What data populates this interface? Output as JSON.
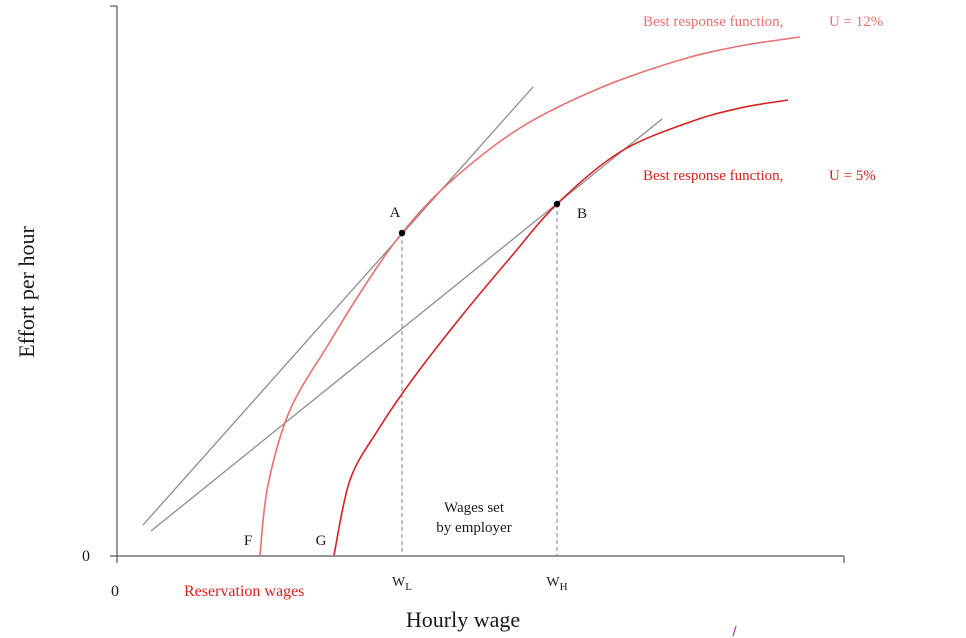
{
  "chart_data": {
    "type": "line",
    "title": "",
    "xlabel": "Hourly wage",
    "ylabel": "Effort per hour",
    "x_origin_label": "0",
    "y_origin_label": "0",
    "grid": false,
    "colors": {
      "axis": "#555555",
      "isocost": "#8c8c8c",
      "br_high_u": "#e87070",
      "br_low_u": "#d81f1f",
      "dashed": "#888888",
      "text": "#1a1a1a"
    },
    "series": [
      {
        "name": "Best response function, U = 12%",
        "label_text": "Best response function,",
        "label_u": "U = 12%",
        "color": "#e87070",
        "points": [
          [
            260,
            555
          ],
          [
            268,
            485
          ],
          [
            290,
            410
          ],
          [
            328,
            345
          ],
          [
            362,
            290
          ],
          [
            402,
            233
          ],
          [
            450,
            182
          ],
          [
            520,
            128
          ],
          [
            600,
            88
          ],
          [
            680,
            60
          ],
          [
            740,
            46
          ],
          [
            800,
            37
          ]
        ]
      },
      {
        "name": "Best response function, U = 5%",
        "label_text": "Best response function,",
        "label_u": "U = 5%",
        "color": "#d81f1f",
        "points": [
          [
            334,
            555
          ],
          [
            350,
            480
          ],
          [
            378,
            430
          ],
          [
            412,
            380
          ],
          [
            460,
            318
          ],
          [
            510,
            258
          ],
          [
            557,
            204
          ],
          [
            620,
            152
          ],
          [
            690,
            122
          ],
          [
            740,
            108
          ],
          [
            788,
            100
          ]
        ]
      }
    ],
    "isocost_lines": [
      {
        "from": [
          143,
          525
        ],
        "to": [
          533,
          87
        ]
      },
      {
        "from": [
          151,
          531
        ],
        "to": [
          662,
          119
        ]
      }
    ],
    "points": [
      {
        "label": "A",
        "x": 402,
        "y": 233
      },
      {
        "label": "B",
        "x": 557,
        "y": 204
      }
    ],
    "wage_labels": [
      {
        "main": "W",
        "sub": "L",
        "x": 402
      },
      {
        "main": "W",
        "sub": "H",
        "x": 557
      }
    ],
    "reservation_points": [
      {
        "label": "F",
        "x": 260
      },
      {
        "label": "G",
        "x": 334
      }
    ],
    "annotations": {
      "reservation_wages": "Reservation wages",
      "wages_set_line1": "Wages set",
      "wages_set_line2": "by employer"
    }
  }
}
